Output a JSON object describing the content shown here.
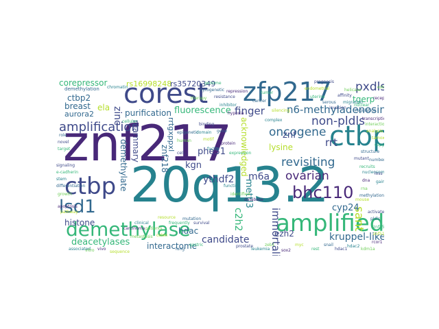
{
  "palette": {
    "indigo": "#482878",
    "blue": "#3e4989",
    "steel": "#31688e",
    "teal": "#26828e",
    "green": "#35b779",
    "lime": "#6ece58",
    "yellow": "#b5de2b"
  },
  "words": [
    {
      "text": "znf217",
      "color": "#482878"
    },
    {
      "text": "20q13.2",
      "color": "#26828e"
    },
    {
      "text": "corest",
      "color": "#3e4989"
    },
    {
      "text": "zfp217",
      "color": "#31688e"
    },
    {
      "text": "ctbp1",
      "color": "#26828e"
    },
    {
      "text": "ctbp",
      "color": "#3e4989"
    },
    {
      "text": "demethylase",
      "color": "#35b779"
    },
    {
      "text": "amplified",
      "color": "#35b779"
    },
    {
      "text": "lsd1",
      "color": "#31688e"
    },
    {
      "text": "amplification",
      "color": "#3e4989"
    },
    {
      "text": "bhc110",
      "color": "#482878"
    },
    {
      "text": "n6-methyladenosine",
      "color": "#31688e"
    },
    {
      "text": "non-pldls",
      "color": "#3e4989"
    },
    {
      "text": "oncogene",
      "color": "#31688e"
    },
    {
      "text": "revisiting",
      "color": "#31688e"
    },
    {
      "text": "ovarian",
      "color": "#482878"
    },
    {
      "text": "immortalization",
      "color": "#3e4989"
    },
    {
      "text": "pxdls",
      "color": "#3e4989"
    },
    {
      "text": "corepressor",
      "color": "#35b779"
    },
    {
      "text": "finger",
      "color": "#3e4989"
    },
    {
      "text": "candidate",
      "color": "#3e4989"
    },
    {
      "text": "kruppel-like",
      "color": "#31688e"
    },
    {
      "text": "sant",
      "color": "#b5de2b"
    },
    {
      "text": "ctbp2",
      "color": "#31688e"
    },
    {
      "text": "breast",
      "color": "#31688e"
    },
    {
      "text": "fluorescence",
      "color": "#35b779"
    },
    {
      "text": "purification",
      "color": "#31688e"
    },
    {
      "text": "rs16998248",
      "color": "#b5de2b"
    },
    {
      "text": "rs35720349",
      "color": "#3e4989"
    },
    {
      "text": "histone",
      "color": "#3e4989"
    },
    {
      "text": "deacetylases",
      "color": "#35b779"
    },
    {
      "text": "interactome",
      "color": "#31688e"
    },
    {
      "text": "hdac",
      "color": "#31688e"
    },
    {
      "text": "ythdf2",
      "color": "#3e4989"
    },
    {
      "text": "mettl3",
      "color": "#26828e"
    },
    {
      "text": "m6a",
      "color": "#3e4989"
    },
    {
      "text": "rrt",
      "color": "#3e4989"
    },
    {
      "text": "znf",
      "color": "#3e4989"
    },
    {
      "text": "lysine",
      "color": "#b5de2b"
    },
    {
      "text": "cyp24",
      "color": "#31688e"
    },
    {
      "text": "ezh2",
      "color": "#3e4989"
    },
    {
      "text": "c2h2",
      "color": "#35b779"
    },
    {
      "text": "acknowledged",
      "color": "#b5de2b"
    },
    {
      "text": "phe31",
      "color": "#3e4989"
    },
    {
      "text": "kgn",
      "color": "#3e4989"
    },
    {
      "text": "znf218",
      "color": "#31688e"
    },
    {
      "text": "mammary",
      "color": "#3e4989"
    },
    {
      "text": "demethylate",
      "color": "#31688e"
    },
    {
      "text": "aurora2",
      "color": "#31688e"
    },
    {
      "text": "ela",
      "color": "#b5de2b"
    },
    {
      "text": "zinc",
      "color": "#3e4989"
    },
    {
      "text": "rrtgxppxl",
      "color": "#31688e"
    },
    {
      "text": "tgerp",
      "color": "#35b779"
    },
    {
      "text": "demethylation",
      "color": "#31688e"
    },
    {
      "text": "chromatin",
      "color": "#26828e"
    },
    {
      "text": "helicase",
      "color": "#6ece58"
    },
    {
      "text": "affinity",
      "color": "#3e4989"
    },
    {
      "text": "cellular",
      "color": "#35b779"
    },
    {
      "text": "epigenetic",
      "color": "#31688e"
    },
    {
      "text": "metastasis",
      "color": "#6ece58"
    },
    {
      "text": "prognosis",
      "color": "#3e4989"
    },
    {
      "text": "silencing",
      "color": "#b5de2b"
    },
    {
      "text": "complex",
      "color": "#26828e"
    },
    {
      "text": "repression",
      "color": "#482878"
    },
    {
      "text": "tumor",
      "color": "#35b779"
    },
    {
      "text": "cancer",
      "color": "#31688e"
    },
    {
      "text": "binding",
      "color": "#3e4989"
    },
    {
      "text": "domain",
      "color": "#26828e"
    },
    {
      "text": "motif",
      "color": "#b5de2b"
    },
    {
      "text": "protein",
      "color": "#482878"
    },
    {
      "text": "expression",
      "color": "#35b779"
    },
    {
      "text": "gene",
      "color": "#31688e"
    },
    {
      "text": "human",
      "color": "#6ece58"
    },
    {
      "text": "cell",
      "color": "#3e4989"
    },
    {
      "text": "factor",
      "color": "#26828e"
    },
    {
      "text": "nuclear",
      "color": "#35b779"
    },
    {
      "text": "regulation",
      "color": "#31688e"
    },
    {
      "text": "transcription",
      "color": "#482878"
    },
    {
      "text": "interaction",
      "color": "#6ece58"
    },
    {
      "text": "analysis",
      "color": "#b5de2b"
    },
    {
      "text": "structure",
      "color": "#31688e"
    },
    {
      "text": "mutant",
      "color": "#3e4989"
    },
    {
      "text": "recruits",
      "color": "#35b779"
    },
    {
      "text": "nucleosome",
      "color": "#26828e"
    },
    {
      "text": "dna",
      "color": "#482878"
    },
    {
      "text": "rna",
      "color": "#6ece58"
    },
    {
      "text": "methylation",
      "color": "#31688e"
    },
    {
      "text": "mouse",
      "color": "#b5de2b"
    },
    {
      "text": "signaling",
      "color": "#3e4989"
    },
    {
      "text": "e-cadherin",
      "color": "#35b779"
    },
    {
      "text": "stem",
      "color": "#26828e"
    },
    {
      "text": "differentiation",
      "color": "#31688e"
    },
    {
      "text": "growth",
      "color": "#6ece58"
    },
    {
      "text": "apoptosis",
      "color": "#482878"
    },
    {
      "text": "pathway",
      "color": "#b5de2b"
    },
    {
      "text": "target",
      "color": "#35b779"
    },
    {
      "text": "novel",
      "color": "#3e4989"
    },
    {
      "text": "role",
      "color": "#31688e"
    },
    {
      "text": "function",
      "color": "#26828e"
    },
    {
      "text": "identified",
      "color": "#6ece58"
    },
    {
      "text": "database",
      "color": "#482878"
    },
    {
      "text": "resource",
      "color": "#b5de2b"
    },
    {
      "text": "frequently",
      "color": "#35b779"
    },
    {
      "text": "mutation",
      "color": "#31688e"
    },
    {
      "text": "survival",
      "color": "#3e4989"
    },
    {
      "text": "clinical",
      "color": "#26828e"
    },
    {
      "text": "patients",
      "color": "#6ece58"
    },
    {
      "text": "carcinoma",
      "color": "#482878"
    },
    {
      "text": "colon",
      "color": "#b5de2b"
    },
    {
      "text": "gastric",
      "color": "#35b779"
    },
    {
      "text": "lung",
      "color": "#31688e"
    },
    {
      "text": "prostate",
      "color": "#3e4989"
    },
    {
      "text": "leukemia",
      "color": "#26828e"
    },
    {
      "text": "zeb1",
      "color": "#6ece58"
    },
    {
      "text": "sox2",
      "color": "#482878"
    },
    {
      "text": "myc",
      "color": "#b5de2b"
    },
    {
      "text": "rest",
      "color": "#35b779"
    },
    {
      "text": "snail",
      "color": "#31688e"
    },
    {
      "text": "hdac1",
      "color": "#3e4989"
    },
    {
      "text": "hdac2",
      "color": "#26828e"
    },
    {
      "text": "kdm1a",
      "color": "#6ece58"
    },
    {
      "text": "rcor1",
      "color": "#482878"
    },
    {
      "text": "znf516",
      "color": "#b5de2b"
    },
    {
      "text": "znf750",
      "color": "#35b779"
    },
    {
      "text": "pldls",
      "color": "#31688e"
    },
    {
      "text": "activates",
      "color": "#3e4989"
    },
    {
      "text": "associated",
      "color": "#26828e"
    },
    {
      "text": "vitro",
      "color": "#6ece58"
    },
    {
      "text": "vivo",
      "color": "#482878"
    },
    {
      "text": "sequence",
      "color": "#b5de2b"
    },
    {
      "text": "genome",
      "color": "#35b779"
    },
    {
      "text": "cytogenetic",
      "color": "#31688e"
    },
    {
      "text": "resistance",
      "color": "#3e4989"
    },
    {
      "text": "inhibitor",
      "color": "#26828e"
    },
    {
      "text": "therapy",
      "color": "#6ece58"
    },
    {
      "text": "hypoxia",
      "color": "#482878"
    },
    {
      "text": "endometrial",
      "color": "#b5de2b"
    },
    {
      "text": "uterine",
      "color": "#35b779"
    },
    {
      "text": "serous",
      "color": "#31688e"
    },
    {
      "text": "invasion",
      "color": "#3e4989"
    },
    {
      "text": "migration",
      "color": "#26828e"
    },
    {
      "text": "estrogen",
      "color": "#6ece58"
    },
    {
      "text": "receptor",
      "color": "#482878"
    },
    {
      "text": "tamoxifen",
      "color": "#b5de2b"
    },
    {
      "text": "copy",
      "color": "#35b779"
    },
    {
      "text": "number",
      "color": "#31688e"
    },
    {
      "text": "loss",
      "color": "#3e4989"
    },
    {
      "text": "gain",
      "color": "#26828e"
    }
  ]
}
